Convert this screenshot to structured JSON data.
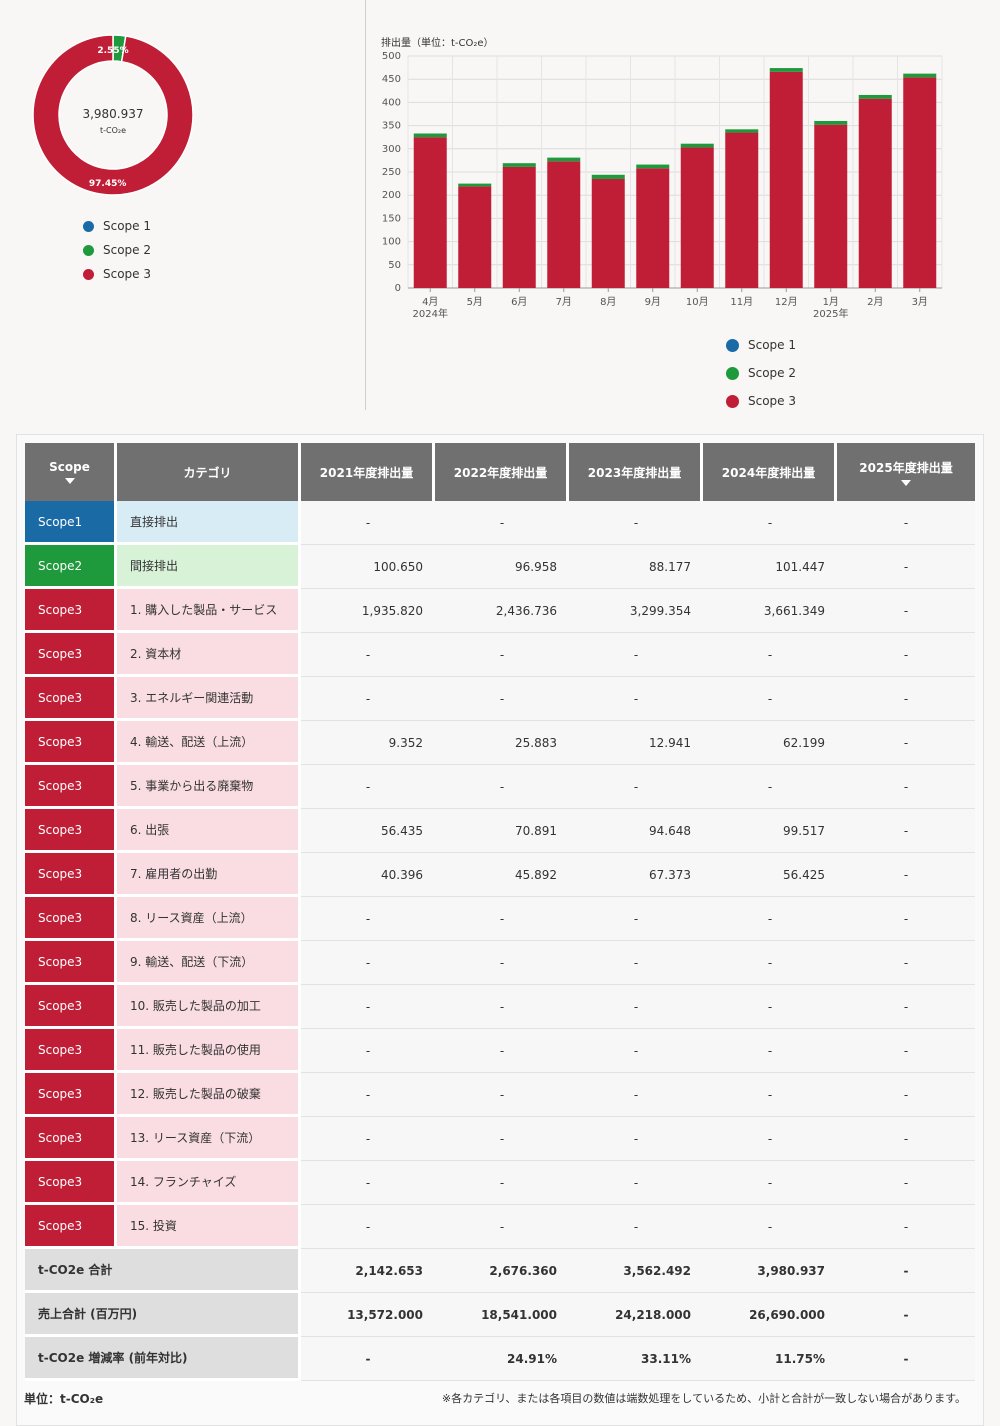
{
  "colors": {
    "scope1": "#1a6aa6",
    "scope2": "#1e9a3c",
    "scope3": "#bf1e36"
  },
  "chart_data": [
    {
      "type": "pie",
      "center_value": "3,980.937",
      "center_unit": "t-CO₂e",
      "slices": [
        {
          "name": "Scope 1",
          "value": 0,
          "label": ""
        },
        {
          "name": "Scope 2",
          "value": 2.55,
          "label": "2.55%"
        },
        {
          "name": "Scope 3",
          "value": 97.45,
          "label": "97.45%"
        }
      ],
      "legend": [
        "Scope 1",
        "Scope 2",
        "Scope 3"
      ]
    },
    {
      "type": "bar",
      "stacked": true,
      "title": "排出量（単位：t-CO₂e）",
      "categories": [
        "4月",
        "5月",
        "6月",
        "7月",
        "8月",
        "9月",
        "10月",
        "11月",
        "12月",
        "1月",
        "2月",
        "3月"
      ],
      "year_labels": {
        "0": "2024年",
        "9": "2025年"
      },
      "series": [
        {
          "name": "Scope 1",
          "values": [
            0,
            0,
            0,
            0,
            0,
            0,
            0,
            0,
            0,
            0,
            0,
            0
          ]
        },
        {
          "name": "Scope 3",
          "values": [
            325,
            219,
            261,
            273,
            235,
            258,
            303,
            335,
            466,
            352,
            408,
            454
          ]
        },
        {
          "name": "Scope 2",
          "values": [
            8,
            6,
            8,
            8,
            9,
            8,
            8,
            7,
            8,
            8,
            8,
            8
          ]
        }
      ],
      "ylim": [
        0,
        500
      ],
      "yticks": [
        0,
        50,
        100,
        150,
        200,
        250,
        300,
        350,
        400,
        450,
        500
      ],
      "legend": [
        "Scope 1",
        "Scope 2",
        "Scope 3"
      ]
    }
  ],
  "table": {
    "headers": [
      "Scope",
      "カテゴリ",
      "2021年度排出量",
      "2022年度排出量",
      "2023年度排出量",
      "2024年度排出量",
      "2025年度排出量"
    ],
    "rows": [
      {
        "scope": "Scope1",
        "cls": "1",
        "category": "直接排出",
        "values": [
          "-",
          "-",
          "-",
          "-",
          "-"
        ]
      },
      {
        "scope": "Scope2",
        "cls": "2",
        "category": "間接排出",
        "values": [
          "100.650",
          "96.958",
          "88.177",
          "101.447",
          "-"
        ]
      },
      {
        "scope": "Scope3",
        "cls": "3",
        "category": "1. 購入した製品・サービス",
        "values": [
          "1,935.820",
          "2,436.736",
          "3,299.354",
          "3,661.349",
          "-"
        ]
      },
      {
        "scope": "Scope3",
        "cls": "3",
        "category": "2. 資本材",
        "values": [
          "-",
          "-",
          "-",
          "-",
          "-"
        ]
      },
      {
        "scope": "Scope3",
        "cls": "3",
        "category": "3. エネルギー関連活動",
        "values": [
          "-",
          "-",
          "-",
          "-",
          "-"
        ]
      },
      {
        "scope": "Scope3",
        "cls": "3",
        "category": "4. 輸送、配送（上流）",
        "values": [
          "9.352",
          "25.883",
          "12.941",
          "62.199",
          "-"
        ]
      },
      {
        "scope": "Scope3",
        "cls": "3",
        "category": "5. 事業から出る廃棄物",
        "values": [
          "-",
          "-",
          "-",
          "-",
          "-"
        ]
      },
      {
        "scope": "Scope3",
        "cls": "3",
        "category": "6. 出張",
        "values": [
          "56.435",
          "70.891",
          "94.648",
          "99.517",
          "-"
        ]
      },
      {
        "scope": "Scope3",
        "cls": "3",
        "category": "7. 雇用者の出勤",
        "values": [
          "40.396",
          "45.892",
          "67.373",
          "56.425",
          "-"
        ]
      },
      {
        "scope": "Scope3",
        "cls": "3",
        "category": "8. リース資産（上流）",
        "values": [
          "-",
          "-",
          "-",
          "-",
          "-"
        ]
      },
      {
        "scope": "Scope3",
        "cls": "3",
        "category": "9. 輸送、配送（下流）",
        "values": [
          "-",
          "-",
          "-",
          "-",
          "-"
        ]
      },
      {
        "scope": "Scope3",
        "cls": "3",
        "category": "10. 販売した製品の加工",
        "values": [
          "-",
          "-",
          "-",
          "-",
          "-"
        ]
      },
      {
        "scope": "Scope3",
        "cls": "3",
        "category": "11. 販売した製品の使用",
        "values": [
          "-",
          "-",
          "-",
          "-",
          "-"
        ]
      },
      {
        "scope": "Scope3",
        "cls": "3",
        "category": "12. 販売した製品の破棄",
        "values": [
          "-",
          "-",
          "-",
          "-",
          "-"
        ]
      },
      {
        "scope": "Scope3",
        "cls": "3",
        "category": "13. リース資産（下流）",
        "values": [
          "-",
          "-",
          "-",
          "-",
          "-"
        ]
      },
      {
        "scope": "Scope3",
        "cls": "3",
        "category": "14. フランチャイズ",
        "values": [
          "-",
          "-",
          "-",
          "-",
          "-"
        ]
      },
      {
        "scope": "Scope3",
        "cls": "3",
        "category": "15. 投資",
        "values": [
          "-",
          "-",
          "-",
          "-",
          "-"
        ]
      }
    ],
    "summary": [
      {
        "label": "t-CO2e 合計",
        "values": [
          "2,142.653",
          "2,676.360",
          "3,562.492",
          "3,980.937",
          "-"
        ]
      },
      {
        "label": "売上合計 (百万円)",
        "values": [
          "13,572.000",
          "18,541.000",
          "24,218.000",
          "26,690.000",
          "-"
        ]
      },
      {
        "label": "t-CO2e 増減率 (前年対比)",
        "values": [
          "-",
          "24.91%",
          "33.11%",
          "11.75%",
          "-"
        ]
      }
    ]
  },
  "footer": {
    "unit": "単位：t-CO₂e",
    "note": "※各カテゴリ、または各項目の数値は端数処理をしているため、小計と合計が一致しない場合があります。"
  }
}
